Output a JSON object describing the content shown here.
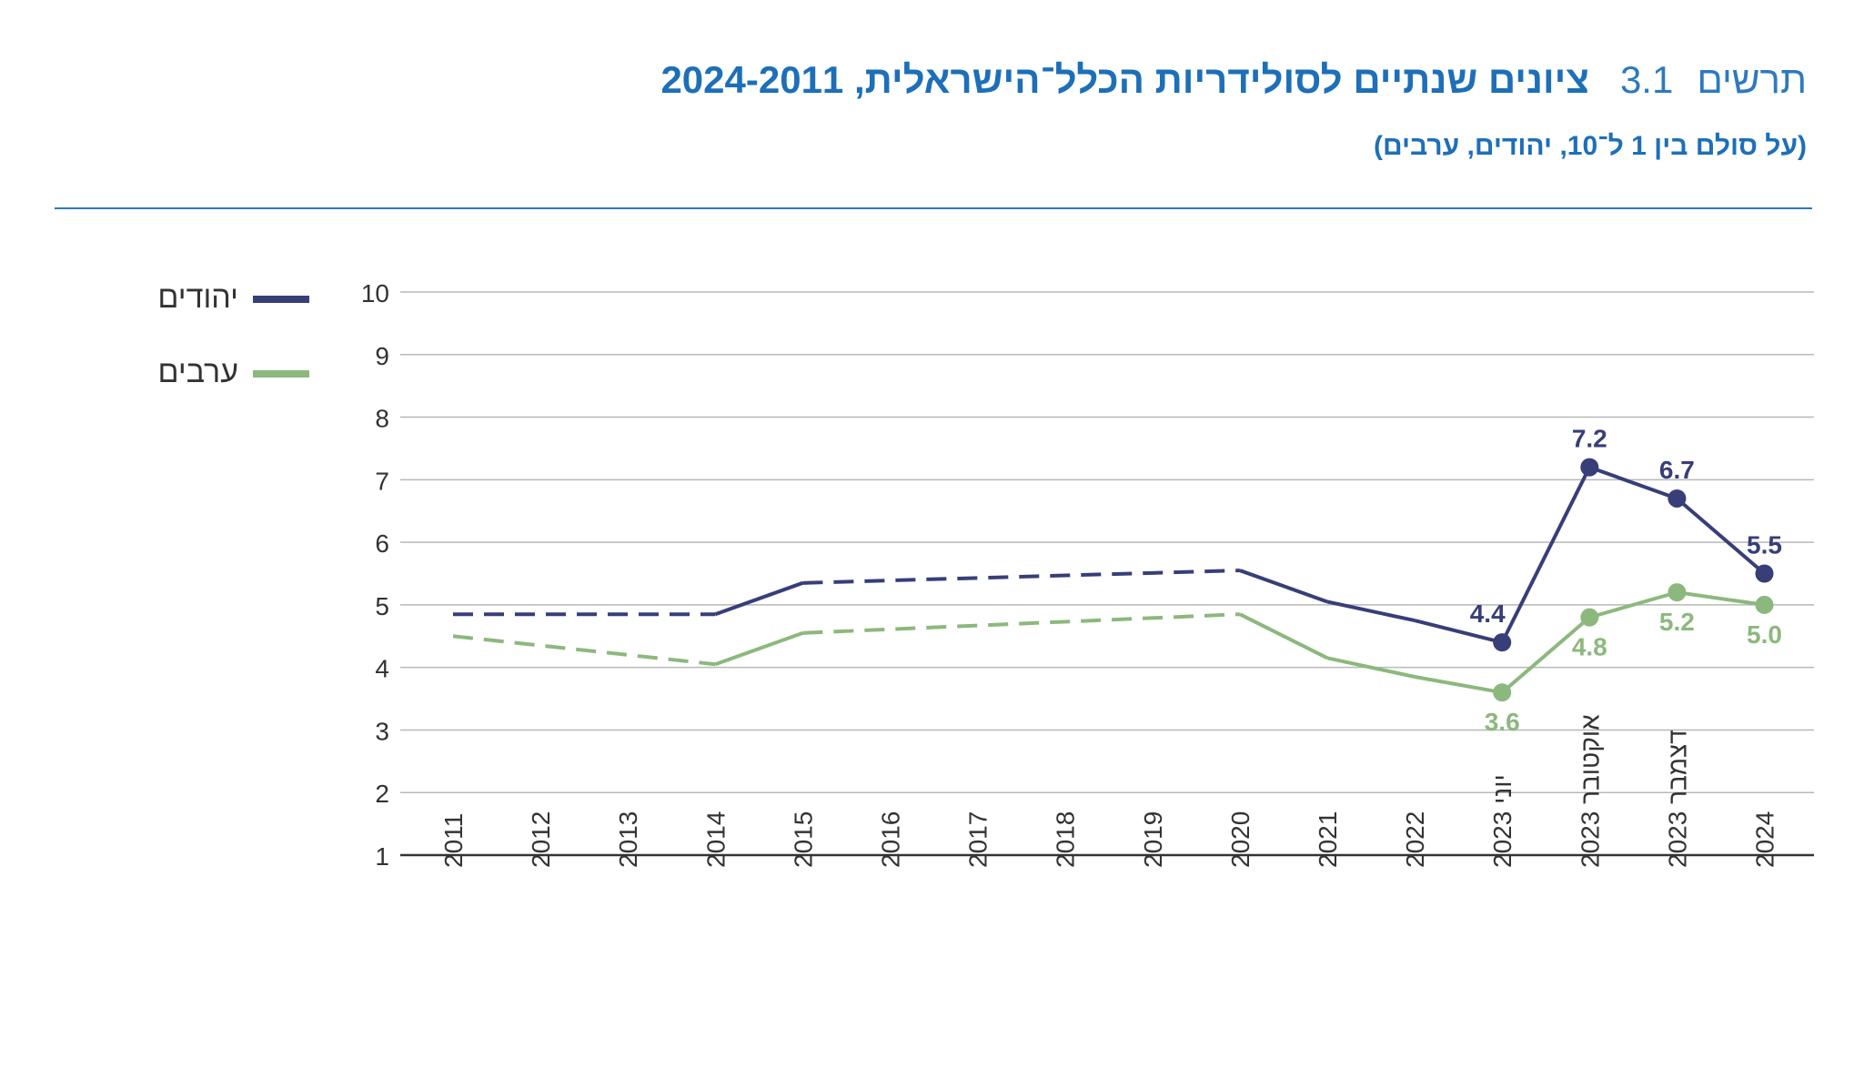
{
  "header": {
    "figure_label": "תרשים",
    "figure_number": "3.1",
    "title": "ציונים שנתיים לסולידריות הכלל־הישראלית, 2024-2011",
    "subtitle": "(על סולם בין 1 ל־10, יהודים, ערבים)"
  },
  "colors": {
    "jews": "#373e78",
    "arabs": "#8cb87d",
    "accent": "#1d6fb8",
    "grid": "#b8b8b8"
  },
  "chart_data": {
    "type": "line",
    "title": "ציונים שנתיים לסולידריות הכלל־הישראלית, 2024-2011",
    "subtitle": "(על סולם בין 1 ל־10, יהודים, ערבים)",
    "categories": [
      "2011",
      "2012",
      "2013",
      "2014",
      "2015",
      "2016",
      "2017",
      "2018",
      "2019",
      "2020",
      "2021",
      "2022",
      "יוני 2023",
      "אוקטובר 2023",
      "דצמבר 2023",
      "2024"
    ],
    "ylim": [
      1,
      10
    ],
    "yticks": [
      1,
      2,
      3,
      4,
      5,
      6,
      7,
      8,
      9,
      10
    ],
    "grid": true,
    "legend_position": "top-left",
    "series": [
      {
        "name": "יהודים",
        "color": "#373e78",
        "values": [
          4.85,
          null,
          null,
          4.85,
          5.35,
          null,
          null,
          null,
          null,
          5.55,
          5.05,
          4.75,
          4.4,
          7.2,
          6.7,
          5.5
        ],
        "dashed_segments": [
          [
            0,
            3
          ],
          [
            4,
            9
          ]
        ],
        "markers": [
          12,
          13,
          14,
          15
        ],
        "labels": {
          "12": "4.4",
          "13": "7.2",
          "14": "6.7",
          "15": "5.5"
        }
      },
      {
        "name": "ערבים",
        "color": "#8cb87d",
        "values": [
          4.5,
          null,
          null,
          4.05,
          4.55,
          null,
          null,
          null,
          null,
          4.85,
          4.15,
          3.85,
          3.6,
          4.8,
          5.2,
          5.0
        ],
        "dashed_segments": [
          [
            0,
            3
          ],
          [
            4,
            9
          ]
        ],
        "markers": [
          12,
          13,
          14,
          15
        ],
        "labels": {
          "12": "3.6",
          "13": "4.8",
          "14": "5.2",
          "15": "5.0"
        }
      }
    ]
  },
  "legend": {
    "items": [
      {
        "label": "יהודים",
        "color": "#373e78"
      },
      {
        "label": "ערבים",
        "color": "#8cb87d"
      }
    ]
  }
}
